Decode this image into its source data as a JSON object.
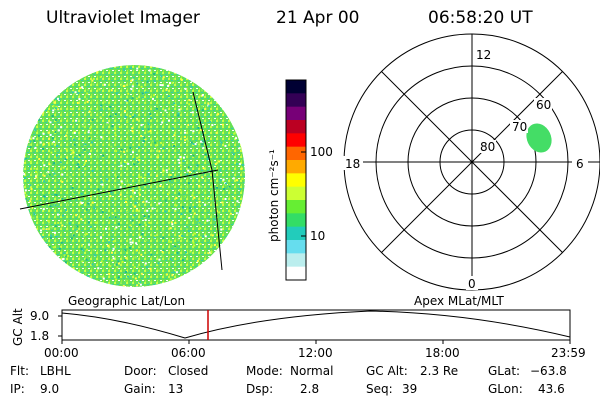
{
  "header": {
    "instrument": "Ultraviolet Imager",
    "date": "21 Apr 00",
    "time": "06:58:20 UT"
  },
  "colorbar": {
    "unit_label": "photon cm⁻²s⁻¹",
    "ticks": [
      {
        "value": "100",
        "pos": 0.36
      },
      {
        "value": "10",
        "pos": 0.78
      }
    ],
    "colors": [
      "#000033",
      "#330055",
      "#770077",
      "#bb0022",
      "#ff0000",
      "#ff6600",
      "#ffaa00",
      "#ffff00",
      "#ccff33",
      "#66ee33",
      "#33dd66",
      "#22ccbb",
      "#66ddee",
      "#bbeeee",
      "#ffffff"
    ]
  },
  "polar_plot": {
    "mlt_labels": {
      "top": "12",
      "bottom": "0",
      "left": "18",
      "right": "6"
    },
    "lat_labels": [
      "60",
      "70",
      "80"
    ],
    "spot_color": "#44dd66"
  },
  "timeline": {
    "left_title": "Geographic Lat/Lon",
    "right_title": "Apex MLat/MLT",
    "axis_label": "GC Alt",
    "y_ticks": [
      "9.0",
      "1.8"
    ],
    "x_ticks": [
      "00:00",
      "06:00",
      "12:00",
      "18:00",
      "23:59"
    ],
    "marker_color": "#cc0000"
  },
  "info": {
    "flt_label": "Flt:",
    "flt_value": "LBHL",
    "ip_label": "IP:",
    "ip_value": "9.0",
    "door_label": "Door:",
    "door_value": "Closed",
    "gain_label": "Gain:",
    "gain_value": "13",
    "mode_label": "Mode:",
    "mode_value": "Normal",
    "dsp_label": "Dsp:",
    "dsp_value": "2.8",
    "gcalt_label": "GC Alt:",
    "gcalt_value": "2.3 Re",
    "seq_label": "Seq:",
    "seq_value": "39",
    "glat_label": "GLat:",
    "glat_value": "−63.8",
    "glon_label": "GLon:",
    "glon_value": "43.6"
  }
}
